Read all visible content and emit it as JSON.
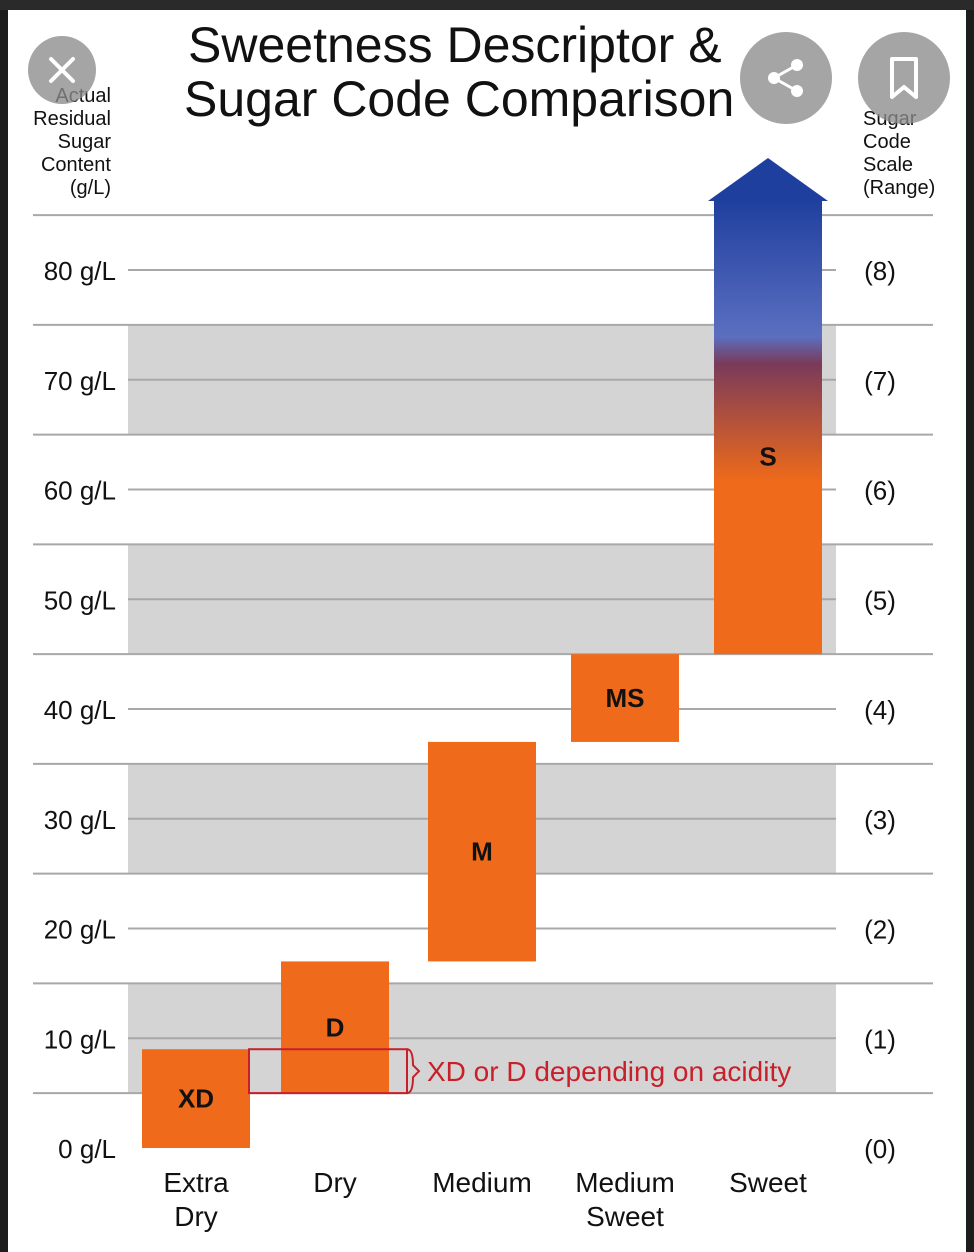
{
  "chart_data": {
    "type": "bar",
    "title": "Sweetness Descriptor & Sugar Code Comparison",
    "title_lines": [
      "Sweetness Descriptor &",
      "Sugar Code Comparison"
    ],
    "left_axis_title": [
      "Actual",
      "Residual",
      "Sugar",
      "Content",
      "(g/L)"
    ],
    "right_axis_title": [
      "Sugar",
      "Code",
      "Scale",
      "(Range)"
    ],
    "ylim": [
      0,
      80
    ],
    "left_ticks": [
      {
        "value": 0,
        "label": "0 g/L"
      },
      {
        "value": 10,
        "label": "10 g/L"
      },
      {
        "value": 20,
        "label": "20 g/L"
      },
      {
        "value": 30,
        "label": "30 g/L"
      },
      {
        "value": 40,
        "label": "40 g/L"
      },
      {
        "value": 50,
        "label": "50 g/L"
      },
      {
        "value": 60,
        "label": "60 g/L"
      },
      {
        "value": 70,
        "label": "70 g/L"
      },
      {
        "value": 80,
        "label": "80 g/L"
      }
    ],
    "right_ticks": [
      {
        "value": 0,
        "label": "(0)"
      },
      {
        "value": 10,
        "label": "(1)"
      },
      {
        "value": 20,
        "label": "(2)"
      },
      {
        "value": 30,
        "label": "(3)"
      },
      {
        "value": 40,
        "label": "(4)"
      },
      {
        "value": 50,
        "label": "(5)"
      },
      {
        "value": 60,
        "label": "(6)"
      },
      {
        "value": 70,
        "label": "(7)"
      },
      {
        "value": 80,
        "label": "(8)"
      }
    ],
    "shaded_bands": [
      [
        5,
        15
      ],
      [
        25,
        35
      ],
      [
        45,
        55
      ],
      [
        65,
        75
      ]
    ],
    "categories": [
      {
        "label_lines": [
          "Extra",
          "Dry"
        ],
        "code": "XD",
        "low": 0,
        "high": 9
      },
      {
        "label_lines": [
          "Dry"
        ],
        "code": "D",
        "low": 5,
        "high": 17
      },
      {
        "label_lines": [
          "Medium"
        ],
        "code": "M",
        "low": 17,
        "high": 37
      },
      {
        "label_lines": [
          "Medium",
          "Sweet"
        ],
        "code": "MS",
        "low": 37,
        "high": 45
      },
      {
        "label_lines": [
          "Sweet"
        ],
        "code": "S",
        "low": 45,
        "high": 80,
        "open_ended": true
      }
    ],
    "annotation": {
      "text": "XD or D depending on acidity",
      "low": 5,
      "high": 9
    },
    "grid": true
  },
  "colors": {
    "bar": "#ef6a1a",
    "band": "#d4d4d4",
    "gridline": "#a8a8a8",
    "arrow_top": "#1f3f9e",
    "arrow_mid": "#5a3a86",
    "annotation": "#c8202a"
  },
  "overlay": {
    "close_icon": "close-icon",
    "share_icon": "share-icon",
    "bookmark_icon": "bookmark-icon"
  }
}
